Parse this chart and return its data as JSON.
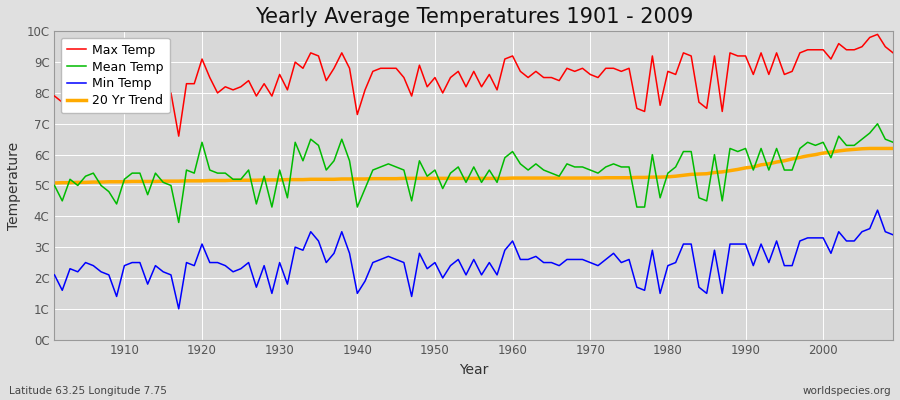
{
  "title": "Yearly Average Temperatures 1901 - 2009",
  "xlabel": "Year",
  "ylabel": "Temperature",
  "bottom_left": "Latitude 63.25 Longitude 7.75",
  "bottom_right": "worldspecies.org",
  "years": [
    1901,
    1902,
    1903,
    1904,
    1905,
    1906,
    1907,
    1908,
    1909,
    1910,
    1911,
    1912,
    1913,
    1914,
    1915,
    1916,
    1917,
    1918,
    1919,
    1920,
    1921,
    1922,
    1923,
    1924,
    1925,
    1926,
    1927,
    1928,
    1929,
    1930,
    1931,
    1932,
    1933,
    1934,
    1935,
    1936,
    1937,
    1938,
    1939,
    1940,
    1941,
    1942,
    1943,
    1944,
    1945,
    1946,
    1947,
    1948,
    1949,
    1950,
    1951,
    1952,
    1953,
    1954,
    1955,
    1956,
    1957,
    1958,
    1959,
    1960,
    1961,
    1962,
    1963,
    1964,
    1965,
    1966,
    1967,
    1968,
    1969,
    1970,
    1971,
    1972,
    1973,
    1974,
    1975,
    1976,
    1977,
    1978,
    1979,
    1980,
    1981,
    1982,
    1983,
    1984,
    1985,
    1986,
    1987,
    1988,
    1989,
    1990,
    1991,
    1992,
    1993,
    1994,
    1995,
    1996,
    1997,
    1998,
    1999,
    2000,
    2001,
    2002,
    2003,
    2004,
    2005,
    2006,
    2007,
    2008,
    2009
  ],
  "max_temp": [
    7.9,
    7.7,
    8.0,
    8.0,
    8.1,
    8.1,
    7.9,
    7.8,
    7.5,
    8.2,
    8.3,
    8.1,
    7.9,
    8.2,
    8.1,
    8.0,
    6.6,
    8.3,
    8.3,
    9.1,
    8.5,
    8.0,
    8.2,
    8.1,
    8.2,
    8.4,
    7.9,
    8.3,
    7.9,
    8.6,
    8.1,
    9.0,
    8.8,
    9.3,
    9.2,
    8.4,
    8.8,
    9.3,
    8.8,
    7.3,
    8.1,
    8.7,
    8.8,
    8.8,
    8.8,
    8.5,
    7.9,
    8.9,
    8.2,
    8.5,
    8.0,
    8.5,
    8.7,
    8.2,
    8.7,
    8.2,
    8.6,
    8.1,
    9.1,
    9.2,
    8.7,
    8.5,
    8.7,
    8.5,
    8.5,
    8.4,
    8.8,
    8.7,
    8.8,
    8.6,
    8.5,
    8.8,
    8.8,
    8.7,
    8.8,
    7.5,
    7.4,
    9.2,
    7.6,
    8.7,
    8.6,
    9.3,
    9.2,
    7.7,
    7.5,
    9.2,
    7.4,
    9.3,
    9.2,
    9.2,
    8.6,
    9.3,
    8.6,
    9.3,
    8.6,
    8.7,
    9.3,
    9.4,
    9.4,
    9.4,
    9.1,
    9.6,
    9.4,
    9.4,
    9.5,
    9.8,
    9.9,
    9.5,
    9.3
  ],
  "mean_temp": [
    5.0,
    4.5,
    5.2,
    5.0,
    5.3,
    5.4,
    5.0,
    4.8,
    4.4,
    5.2,
    5.4,
    5.4,
    4.7,
    5.4,
    5.1,
    5.0,
    3.8,
    5.5,
    5.4,
    6.4,
    5.5,
    5.4,
    5.4,
    5.2,
    5.2,
    5.5,
    4.4,
    5.3,
    4.3,
    5.5,
    4.6,
    6.4,
    5.8,
    6.5,
    6.3,
    5.5,
    5.8,
    6.5,
    5.8,
    4.3,
    4.9,
    5.5,
    5.6,
    5.7,
    5.6,
    5.5,
    4.5,
    5.8,
    5.3,
    5.5,
    4.9,
    5.4,
    5.6,
    5.1,
    5.6,
    5.1,
    5.5,
    5.1,
    5.9,
    6.1,
    5.7,
    5.5,
    5.7,
    5.5,
    5.4,
    5.3,
    5.7,
    5.6,
    5.6,
    5.5,
    5.4,
    5.6,
    5.7,
    5.6,
    5.6,
    4.3,
    4.3,
    6.0,
    4.6,
    5.4,
    5.6,
    6.1,
    6.1,
    4.6,
    4.5,
    6.0,
    4.5,
    6.2,
    6.1,
    6.2,
    5.5,
    6.2,
    5.5,
    6.2,
    5.5,
    5.5,
    6.2,
    6.4,
    6.3,
    6.4,
    5.9,
    6.6,
    6.3,
    6.3,
    6.5,
    6.7,
    7.0,
    6.5,
    6.4
  ],
  "min_temp": [
    2.1,
    1.6,
    2.3,
    2.2,
    2.5,
    2.4,
    2.2,
    2.1,
    1.4,
    2.4,
    2.5,
    2.5,
    1.8,
    2.4,
    2.2,
    2.1,
    1.0,
    2.5,
    2.4,
    3.1,
    2.5,
    2.5,
    2.4,
    2.2,
    2.3,
    2.5,
    1.7,
    2.4,
    1.5,
    2.5,
    1.8,
    3.0,
    2.9,
    3.5,
    3.2,
    2.5,
    2.8,
    3.5,
    2.8,
    1.5,
    1.9,
    2.5,
    2.6,
    2.7,
    2.6,
    2.5,
    1.4,
    2.8,
    2.3,
    2.5,
    2.0,
    2.4,
    2.6,
    2.1,
    2.6,
    2.1,
    2.5,
    2.1,
    2.9,
    3.2,
    2.6,
    2.6,
    2.7,
    2.5,
    2.5,
    2.4,
    2.6,
    2.6,
    2.6,
    2.5,
    2.4,
    2.6,
    2.8,
    2.5,
    2.6,
    1.7,
    1.6,
    2.9,
    1.5,
    2.4,
    2.5,
    3.1,
    3.1,
    1.7,
    1.5,
    2.9,
    1.5,
    3.1,
    3.1,
    3.1,
    2.4,
    3.1,
    2.5,
    3.2,
    2.4,
    2.4,
    3.2,
    3.3,
    3.3,
    3.3,
    2.8,
    3.5,
    3.2,
    3.2,
    3.5,
    3.6,
    4.2,
    3.5,
    3.4
  ],
  "trend": [
    5.08,
    5.09,
    5.09,
    5.1,
    5.1,
    5.11,
    5.11,
    5.12,
    5.12,
    5.12,
    5.13,
    5.13,
    5.13,
    5.13,
    5.14,
    5.14,
    5.14,
    5.15,
    5.15,
    5.15,
    5.16,
    5.16,
    5.16,
    5.17,
    5.17,
    5.17,
    5.17,
    5.18,
    5.18,
    5.18,
    5.19,
    5.19,
    5.19,
    5.2,
    5.2,
    5.2,
    5.2,
    5.21,
    5.21,
    5.21,
    5.21,
    5.22,
    5.22,
    5.22,
    5.22,
    5.23,
    5.23,
    5.23,
    5.23,
    5.23,
    5.23,
    5.23,
    5.23,
    5.23,
    5.23,
    5.23,
    5.23,
    5.23,
    5.23,
    5.24,
    5.24,
    5.24,
    5.24,
    5.24,
    5.24,
    5.24,
    5.24,
    5.24,
    5.24,
    5.24,
    5.24,
    5.25,
    5.25,
    5.25,
    5.25,
    5.26,
    5.26,
    5.27,
    5.27,
    5.28,
    5.3,
    5.33,
    5.36,
    5.37,
    5.38,
    5.42,
    5.44,
    5.48,
    5.52,
    5.57,
    5.6,
    5.67,
    5.7,
    5.76,
    5.8,
    5.86,
    5.91,
    5.96,
    6.0,
    6.05,
    6.08,
    6.12,
    6.15,
    6.17,
    6.19,
    6.2,
    6.2,
    6.2,
    6.2
  ],
  "max_color": "#ff0000",
  "mean_color": "#00bb00",
  "min_color": "#0000ff",
  "trend_color": "#ffaa00",
  "fig_bg_color": "#e0e0e0",
  "plot_bg_color": "#d8d8d8",
  "grid_color": "#ffffff",
  "ylim": [
    0,
    10
  ],
  "yticks": [
    0,
    1,
    2,
    3,
    4,
    5,
    6,
    7,
    8,
    9,
    10
  ],
  "ytick_labels": [
    "0C",
    "1C",
    "2C",
    "3C",
    "4C",
    "5C",
    "6C",
    "7C",
    "8C",
    "9C",
    "10C"
  ],
  "xlim_left": 1901,
  "xlim_right": 2009,
  "title_fontsize": 15,
  "legend_fontsize": 9,
  "axis_label_fontsize": 10,
  "tick_fontsize": 8.5,
  "linewidth": 1.1,
  "trend_linewidth": 2.5
}
